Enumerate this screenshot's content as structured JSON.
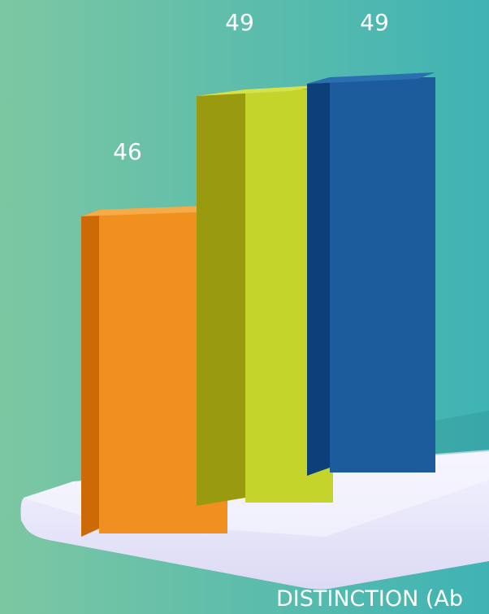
{
  "chart_data": {
    "type": "bar",
    "title": "",
    "xlabel": "DISTINCTION (Ab",
    "ylabel": "",
    "series": [
      {
        "values": [
          46,
          49,
          49
        ]
      }
    ],
    "value_labels": [
      "46",
      "49",
      "49"
    ],
    "bar_colors": [
      "#f0901f",
      "#c4d42b",
      "#1c5c9c"
    ],
    "bar_side_colors": [
      "#cc6a08",
      "#9a9a10",
      "#0d3f78"
    ],
    "bar_top_colors": [
      "#f6ab49",
      "#d5e24c",
      "#2a6fb0"
    ],
    "ylim": [
      0,
      52
    ],
    "grid": false,
    "legend": "none"
  },
  "colors": {
    "background_left": "#7cc7a2",
    "background_right": "#3fb3b4",
    "platform": "#ecebfb",
    "text": "#ffffff"
  }
}
